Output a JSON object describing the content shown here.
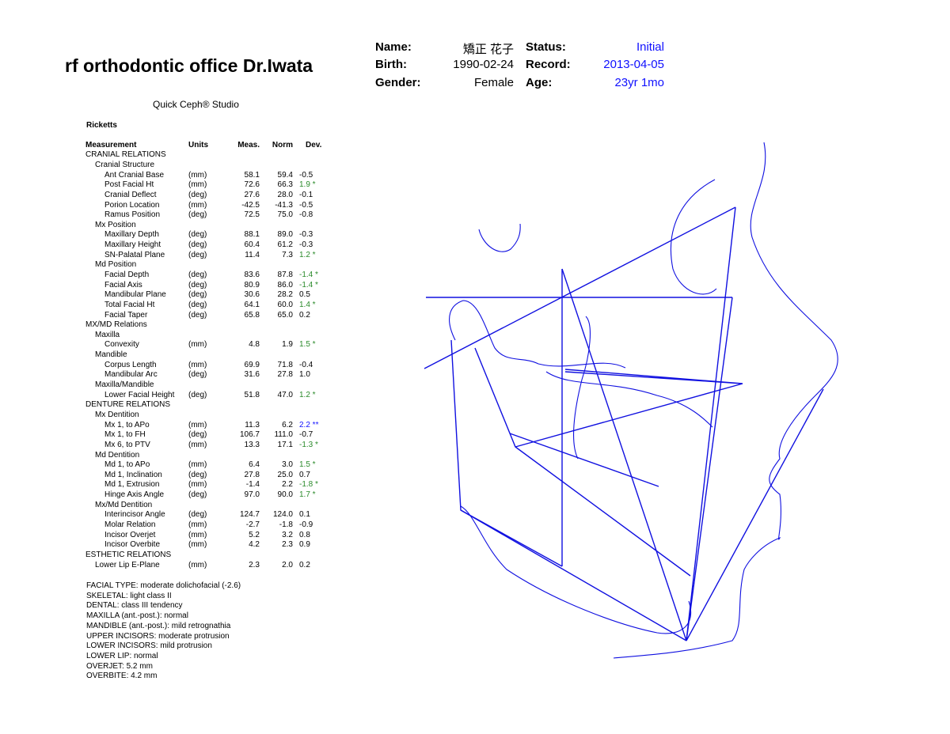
{
  "office": "rf orthodontic office Dr.Iwata",
  "product": "Quick Ceph® Studio",
  "patient": {
    "name_label": "Name:",
    "name": "矯正 花子",
    "birth_label": "Birth:",
    "birth": "1990-02-24",
    "gender_label": "Gender:",
    "gender": "Female",
    "status_label": "Status:",
    "status": "Initial",
    "record_label": "Record:",
    "record": "2013-04-05",
    "age_label": "Age:",
    "age": "23yr 1mo"
  },
  "analysis": "Ricketts",
  "columns": [
    "Measurement",
    "Units",
    "Meas.",
    "Norm",
    "Dev."
  ],
  "rows": [
    {
      "label": "CRANIAL RELATIONS",
      "level": 0
    },
    {
      "label": "Cranial Structure",
      "level": 1
    },
    {
      "label": "Ant Cranial Base",
      "level": 2,
      "units": "(mm)",
      "meas": "58.1",
      "norm": "59.4",
      "dev": "-0.5"
    },
    {
      "label": "Post Facial Ht",
      "level": 2,
      "units": "(mm)",
      "meas": "72.6",
      "norm": "66.3",
      "dev": "1.9 *",
      "flag": "g"
    },
    {
      "label": "Cranial Deflect",
      "level": 2,
      "units": "(deg)",
      "meas": "27.6",
      "norm": "28.0",
      "dev": "-0.1"
    },
    {
      "label": "Porion Location",
      "level": 2,
      "units": "(mm)",
      "meas": "-42.5",
      "norm": "-41.3",
      "dev": "-0.5"
    },
    {
      "label": "Ramus Position",
      "level": 2,
      "units": "(deg)",
      "meas": "72.5",
      "norm": "75.0",
      "dev": "-0.8"
    },
    {
      "label": "Mx Position",
      "level": 1
    },
    {
      "label": "Maxillary Depth",
      "level": 2,
      "units": "(deg)",
      "meas": "88.1",
      "norm": "89.0",
      "dev": "-0.3"
    },
    {
      "label": "Maxillary Height",
      "level": 2,
      "units": "(deg)",
      "meas": "60.4",
      "norm": "61.2",
      "dev": "-0.3"
    },
    {
      "label": "SN-Palatal Plane",
      "level": 2,
      "units": "(deg)",
      "meas": "11.4",
      "norm": "7.3",
      "dev": "1.2 *",
      "flag": "g"
    },
    {
      "label": "Md Position",
      "level": 1
    },
    {
      "label": "Facial Depth",
      "level": 2,
      "units": "(deg)",
      "meas": "83.6",
      "norm": "87.8",
      "dev": "-1.4 *",
      "flag": "g"
    },
    {
      "label": "Facial Axis",
      "level": 2,
      "units": "(deg)",
      "meas": "80.9",
      "norm": "86.0",
      "dev": "-1.4 *",
      "flag": "g"
    },
    {
      "label": "Mandibular Plane",
      "level": 2,
      "units": "(deg)",
      "meas": "30.6",
      "norm": "28.2",
      "dev": "0.5"
    },
    {
      "label": "Total Facial Ht",
      "level": 2,
      "units": "(deg)",
      "meas": "64.1",
      "norm": "60.0",
      "dev": "1.4 *",
      "flag": "g"
    },
    {
      "label": "Facial Taper",
      "level": 2,
      "units": "(deg)",
      "meas": "65.8",
      "norm": "65.0",
      "dev": "0.2"
    },
    {
      "label": "MX/MD Relations",
      "level": 0
    },
    {
      "label": "Maxilla",
      "level": 1
    },
    {
      "label": "Convexity",
      "level": 2,
      "units": "(mm)",
      "meas": "4.8",
      "norm": "1.9",
      "dev": "1.5 *",
      "flag": "g"
    },
    {
      "label": "Mandible",
      "level": 1
    },
    {
      "label": "Corpus Length",
      "level": 2,
      "units": "(mm)",
      "meas": "69.9",
      "norm": "71.8",
      "dev": "-0.4"
    },
    {
      "label": "Mandibular Arc",
      "level": 2,
      "units": "(deg)",
      "meas": "31.6",
      "norm": "27.8",
      "dev": "1.0"
    },
    {
      "label": "Maxilla/Mandible",
      "level": 1
    },
    {
      "label": "Lower Facial Height",
      "level": 2,
      "units": "(deg)",
      "meas": "51.8",
      "norm": "47.0",
      "dev": "1.2 *",
      "flag": "g"
    },
    {
      "label": "DENTURE RELATIONS",
      "level": 0
    },
    {
      "label": "Mx Dentition",
      "level": 1
    },
    {
      "label": "Mx 1, to APo",
      "level": 2,
      "units": "(mm)",
      "meas": "11.3",
      "norm": "6.2",
      "dev": "2.2 **",
      "flag": "b"
    },
    {
      "label": "Mx 1, to FH",
      "level": 2,
      "units": "(deg)",
      "meas": "106.7",
      "norm": "111.0",
      "dev": "-0.7"
    },
    {
      "label": "Mx 6, to PTV",
      "level": 2,
      "units": "(mm)",
      "meas": "13.3",
      "norm": "17.1",
      "dev": "-1.3 *",
      "flag": "g"
    },
    {
      "label": "Md Dentition",
      "level": 1
    },
    {
      "label": "Md 1, to APo",
      "level": 2,
      "units": "(mm)",
      "meas": "6.4",
      "norm": "3.0",
      "dev": "1.5 *",
      "flag": "g"
    },
    {
      "label": "Md 1, Inclination",
      "level": 2,
      "units": "(deg)",
      "meas": "27.8",
      "norm": "25.0",
      "dev": "0.7"
    },
    {
      "label": "Md 1, Extrusion",
      "level": 2,
      "units": "(mm)",
      "meas": "-1.4",
      "norm": "2.2",
      "dev": "-1.8 *",
      "flag": "g"
    },
    {
      "label": "Hinge Axis Angle",
      "level": 2,
      "units": "(deg)",
      "meas": "97.0",
      "norm": "90.0",
      "dev": "1.7 *",
      "flag": "g"
    },
    {
      "label": "Mx/Md Dentition",
      "level": 1
    },
    {
      "label": "Interincisor Angle",
      "level": 2,
      "units": "(deg)",
      "meas": "124.7",
      "norm": "124.0",
      "dev": "0.1"
    },
    {
      "label": "Molar Relation",
      "level": 2,
      "units": "(mm)",
      "meas": "-2.7",
      "norm": "-1.8",
      "dev": "-0.9"
    },
    {
      "label": "Incisor Overjet",
      "level": 2,
      "units": "(mm)",
      "meas": "5.2",
      "norm": "3.2",
      "dev": "0.8"
    },
    {
      "label": "Incisor Overbite",
      "level": 2,
      "units": "(mm)",
      "meas": "4.2",
      "norm": "2.3",
      "dev": "0.9"
    },
    {
      "label": "ESTHETIC RELATIONS",
      "level": 0
    },
    {
      "label": "Lower Lip E-Plane",
      "level": 1,
      "units": "(mm)",
      "meas": "2.3",
      "norm": "2.0",
      "dev": "0.2"
    }
  ],
  "summary": [
    "FACIAL TYPE: moderate dolichofacial (-2.6)",
    "SKELETAL: light class II",
    "DENTAL: class III tendency",
    "MAXILLA (ant.-post.): normal",
    "MANDIBLE (ant.-post.): mild retrognathia",
    "UPPER INCISORS: moderate protrusion",
    "LOWER INCISORS: mild protrusion",
    "LOWER LIP: normal",
    "OVERJET: 5.2 mm",
    "OVERBITE: 4.2 mm"
  ],
  "colors": {
    "tracing": "#1010e0",
    "significant": "#2a8a2a",
    "highly_significant": "#1010ff"
  }
}
